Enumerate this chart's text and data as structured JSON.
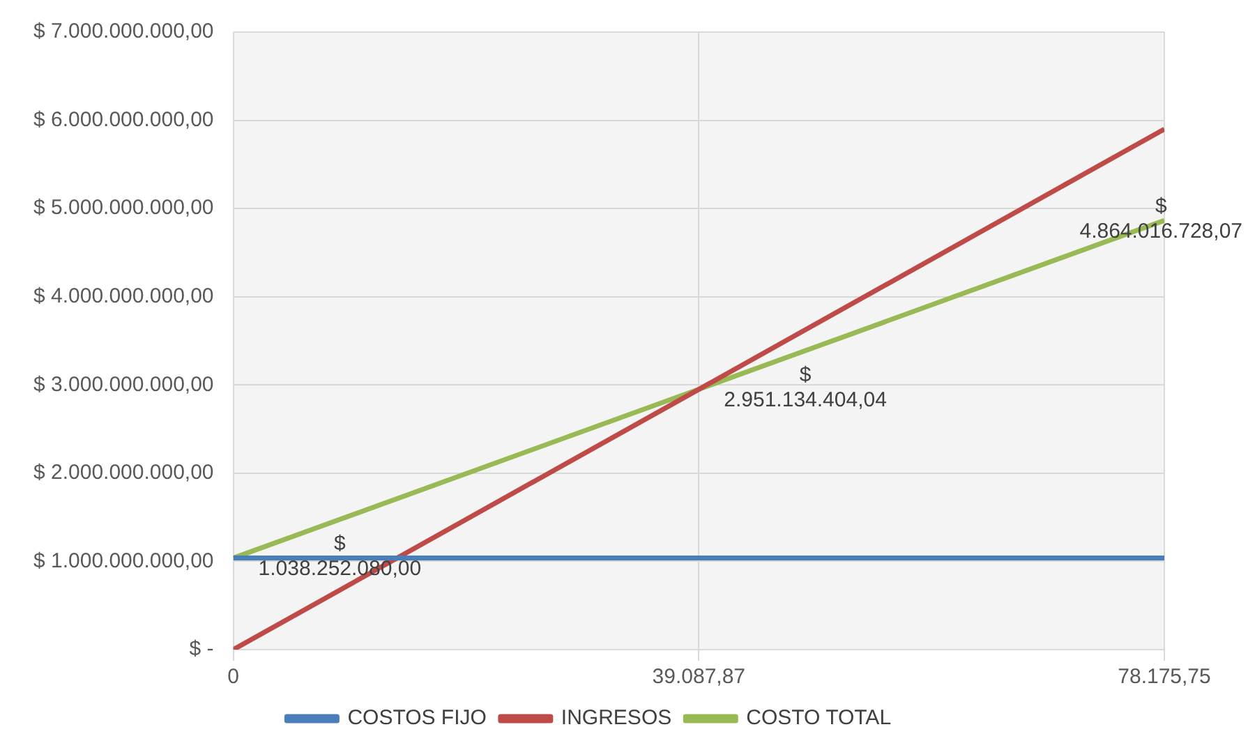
{
  "chart_data": {
    "type": "line",
    "x": [
      0,
      39087.87,
      78175.75
    ],
    "xlim": [
      0,
      78175.75
    ],
    "xticks": [
      0,
      {
        "value": 39087.87,
        "label": "39.087,87"
      },
      {
        "value": 78175.75,
        "label": "78.175,75"
      }
    ],
    "ylim": [
      0,
      7000000000
    ],
    "yticks": [
      {
        "value": 0,
        "label": "$ -"
      },
      {
        "value": 1000000000,
        "label": "$ 1.000.000.000,00"
      },
      {
        "value": 2000000000,
        "label": "$ 2.000.000.000,00"
      },
      {
        "value": 3000000000,
        "label": "$ 3.000.000.000,00"
      },
      {
        "value": 4000000000,
        "label": "$ 4.000.000.000,00"
      },
      {
        "value": 5000000000,
        "label": "$ 5.000.000.000,00"
      },
      {
        "value": 6000000000,
        "label": "$ 6.000.000.000,00"
      },
      {
        "value": 7000000000,
        "label": "$ 7.000.000.000,00"
      }
    ],
    "series": [
      {
        "name": "COSTOS FIJO",
        "color": "#4a7ebb",
        "values": [
          1038252080,
          1038252080,
          1038252080
        ]
      },
      {
        "name": "INGRESOS",
        "color": "#be4b48",
        "values": [
          0,
          2950000000,
          5900000000
        ]
      },
      {
        "name": "COSTO TOTAL",
        "color": "#98b954",
        "values": [
          1038252080,
          2951134404.04,
          4864016728.07
        ],
        "value_labels": [
          "$ 1.038.252.080,00",
          "$ 2.951.134.404,04",
          "$ 4.864.016.728,07"
        ]
      }
    ],
    "grid": true,
    "legend": "bottom",
    "marker": "none",
    "line_style": "solid"
  }
}
